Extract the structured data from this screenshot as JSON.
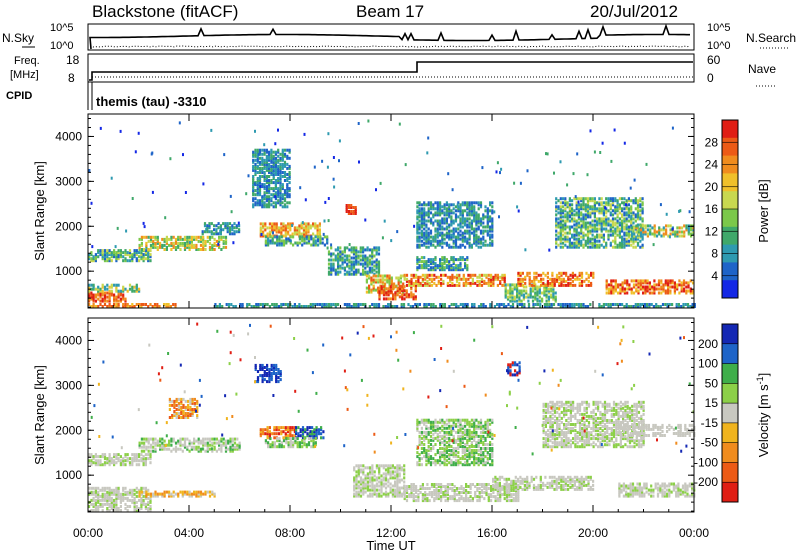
{
  "header": {
    "station": "Blackstone (fitACF)",
    "beam": "Beam 17",
    "date": "20/Jul/2012"
  },
  "noise_panel": {
    "left_label": "N.Sky",
    "right_label": "N.Search",
    "tick_top": "10^5",
    "tick_bottom": "10^0"
  },
  "freq_panel": {
    "left_label_1": "Freq.",
    "left_label_2": "[MHz]",
    "left_label_3": "CPID",
    "right_label": "Nave",
    "left_ticks": [
      "18",
      "8"
    ],
    "right_ticks": [
      "60",
      "0"
    ]
  },
  "cpid_text": "themis (tau) -3310",
  "x_axis": {
    "label": "Time UT",
    "ticks": [
      "00:00",
      "04:00",
      "08:00",
      "12:00",
      "16:00",
      "20:00",
      "00:00"
    ]
  },
  "chart_data": [
    {
      "type": "heatmap",
      "title": "Power",
      "ylabel": "Slant Range [km]",
      "ylim": [
        180,
        4500
      ],
      "yticks": [
        "1000",
        "2000",
        "3000",
        "4000"
      ],
      "colorbar_label": "Power [dB]",
      "colorbar_ticks": [
        "28",
        "24",
        "20",
        "16",
        "12",
        "8",
        "4"
      ],
      "colors": [
        "#1428e6",
        "#1e64c8",
        "#2e9ab0",
        "#3fa86a",
        "#7bc84a",
        "#c8d850",
        "#f0c02a",
        "#f08c1e",
        "#ec5a16",
        "#e01e14"
      ],
      "blobs": [
        {
          "t": [
            0.0,
            1.5
          ],
          "r": [
            300,
            500
          ],
          "c": [
            7,
            8,
            9
          ]
        },
        {
          "t": [
            0.0,
            3.5
          ],
          "r": [
            180,
            260
          ],
          "c": [
            6,
            7,
            8
          ]
        },
        {
          "t": [
            0.0,
            2.0
          ],
          "r": [
            520,
            700
          ],
          "c": [
            2,
            3,
            5,
            6
          ]
        },
        {
          "t": [
            0.0,
            2.5
          ],
          "r": [
            1200,
            1450
          ],
          "c": [
            1,
            2,
            3,
            4,
            5
          ]
        },
        {
          "t": [
            2.0,
            5.5
          ],
          "r": [
            1450,
            1750
          ],
          "c": [
            3,
            4,
            5,
            6,
            7
          ]
        },
        {
          "t": [
            4.5,
            6.0
          ],
          "r": [
            1800,
            2050
          ],
          "c": [
            1,
            2,
            3
          ]
        },
        {
          "t": [
            6.8,
            9.2
          ],
          "r": [
            1750,
            2050
          ],
          "c": [
            5,
            6,
            7,
            8
          ]
        },
        {
          "t": [
            7.0,
            9.5
          ],
          "r": [
            1550,
            1750
          ],
          "c": [
            1,
            2,
            3,
            4
          ]
        },
        {
          "t": [
            6.5,
            8.0
          ],
          "r": [
            2400,
            3700
          ],
          "c": [
            1,
            2,
            3
          ]
        },
        {
          "t": [
            9.5,
            11.5
          ],
          "r": [
            900,
            1500
          ],
          "c": [
            1,
            2,
            3,
            4
          ]
        },
        {
          "t": [
            10.2,
            10.6
          ],
          "r": [
            2250,
            2450
          ],
          "c": [
            9,
            8
          ]
        },
        {
          "t": [
            11.0,
            12.5
          ],
          "r": [
            500,
            900
          ],
          "c": [
            4,
            5,
            6,
            7,
            8
          ]
        },
        {
          "t": [
            11.5,
            13.0
          ],
          "r": [
            350,
            650
          ],
          "c": [
            7,
            8,
            9
          ]
        },
        {
          "t": [
            12.5,
            16.5
          ],
          "r": [
            650,
            900
          ],
          "c": [
            5,
            6,
            7,
            8,
            9
          ]
        },
        {
          "t": [
            13.0,
            15.0
          ],
          "r": [
            1000,
            1300
          ],
          "c": [
            1,
            2,
            3,
            4
          ]
        },
        {
          "t": [
            13.0,
            16.0
          ],
          "r": [
            1500,
            2500
          ],
          "c": [
            1,
            2,
            3
          ]
        },
        {
          "t": [
            16.5,
            18.5
          ],
          "r": [
            300,
            700
          ],
          "c": [
            2,
            3,
            4,
            5
          ]
        },
        {
          "t": [
            17.0,
            20.0
          ],
          "r": [
            650,
            950
          ],
          "c": [
            6,
            7,
            8,
            9
          ]
        },
        {
          "t": [
            18.5,
            22.0
          ],
          "r": [
            1500,
            2600
          ],
          "c": [
            1,
            2,
            3,
            4,
            5
          ]
        },
        {
          "t": [
            21.5,
            24.0
          ],
          "r": [
            1750,
            2000
          ],
          "c": [
            2,
            3,
            4,
            5,
            7
          ]
        },
        {
          "t": [
            20.5,
            24.0
          ],
          "r": [
            480,
            780
          ],
          "c": [
            6,
            7,
            8,
            9
          ]
        },
        {
          "t": [
            5.0,
            24.0
          ],
          "r": [
            180,
            260
          ],
          "c": [
            1,
            2,
            3
          ]
        }
      ]
    },
    {
      "type": "heatmap",
      "title": "Velocity",
      "ylabel": "Slant Range [km]",
      "ylim": [
        180,
        4500
      ],
      "yticks": [
        "1000",
        "2000",
        "3000",
        "4000"
      ],
      "colorbar_label": "Velocity [m s^-1]",
      "colorbar_ticks": [
        "200",
        "100",
        "50",
        "15",
        "-15",
        "-50",
        "-100",
        "-200"
      ],
      "colors": [
        "#e01e14",
        "#ec5a16",
        "#f08c1e",
        "#f0b41e",
        "#c8c8c0",
        "#8cd048",
        "#3fae4a",
        "#1e64c8",
        "#1428b4"
      ],
      "blobs": [
        {
          "t": [
            0.0,
            2.5
          ],
          "r": [
            180,
            700
          ],
          "c": [
            4,
            4,
            4,
            5
          ]
        },
        {
          "t": [
            0.0,
            2.5
          ],
          "r": [
            1200,
            1450
          ],
          "c": [
            4,
            4,
            5
          ]
        },
        {
          "t": [
            2.0,
            6.0
          ],
          "r": [
            1500,
            1800
          ],
          "c": [
            4,
            4,
            4,
            5,
            6
          ]
        },
        {
          "t": [
            2.0,
            5.0
          ],
          "r": [
            500,
            600
          ],
          "c": [
            2,
            3,
            4
          ]
        },
        {
          "t": [
            6.8,
            8.2
          ],
          "r": [
            1800,
            2050
          ],
          "c": [
            0,
            1,
            2,
            3
          ]
        },
        {
          "t": [
            8.2,
            9.3
          ],
          "r": [
            1800,
            2050
          ],
          "c": [
            7,
            8,
            6
          ]
        },
        {
          "t": [
            7.0,
            9.0
          ],
          "r": [
            1600,
            1800
          ],
          "c": [
            4,
            5,
            6
          ]
        },
        {
          "t": [
            6.6,
            7.6
          ],
          "r": [
            3050,
            3450
          ],
          "c": [
            7,
            8
          ]
        },
        {
          "t": [
            3.2,
            4.3
          ],
          "r": [
            2250,
            2700
          ],
          "c": [
            1,
            2,
            3,
            4
          ]
        },
        {
          "t": [
            10.5,
            12.5
          ],
          "r": [
            500,
            1200
          ],
          "c": [
            4,
            4,
            5
          ]
        },
        {
          "t": [
            12.5,
            17.0
          ],
          "r": [
            400,
            800
          ],
          "c": [
            4,
            4,
            4,
            5
          ]
        },
        {
          "t": [
            16.0,
            20.0
          ],
          "r": [
            650,
            950
          ],
          "c": [
            4,
            4,
            5
          ]
        },
        {
          "t": [
            18.0,
            22.0
          ],
          "r": [
            1600,
            2600
          ],
          "c": [
            4,
            4,
            5
          ]
        },
        {
          "t": [
            21.0,
            24.0
          ],
          "r": [
            1850,
            2100
          ],
          "c": [
            4,
            4,
            4
          ]
        },
        {
          "t": [
            21.0,
            24.0
          ],
          "r": [
            500,
            800
          ],
          "c": [
            4,
            4,
            4,
            5
          ]
        },
        {
          "t": [
            13.0,
            16.0
          ],
          "r": [
            1200,
            2200
          ],
          "c": [
            4,
            5,
            6
          ]
        },
        {
          "t": [
            16.6,
            17.1
          ],
          "r": [
            3200,
            3500
          ],
          "c": [
            7,
            8,
            0
          ]
        }
      ]
    }
  ]
}
